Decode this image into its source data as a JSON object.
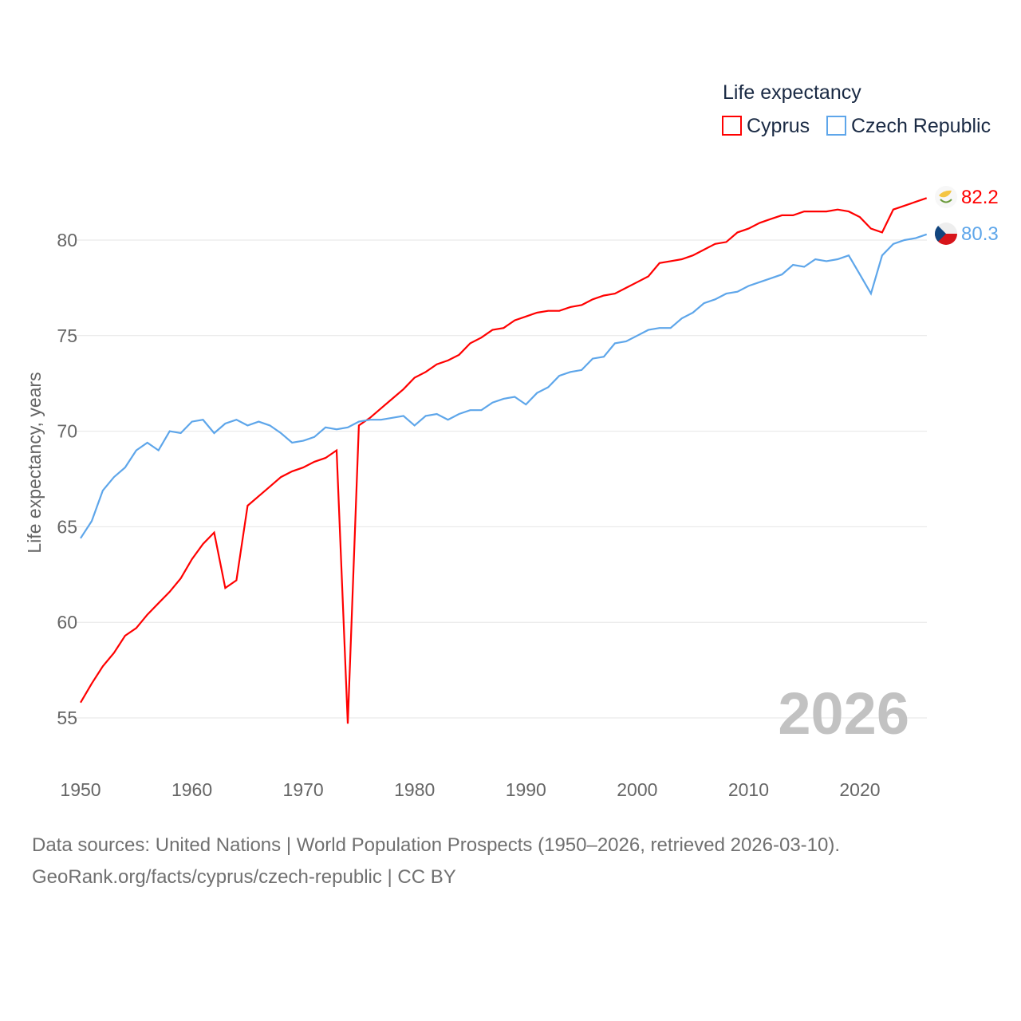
{
  "chart_data": {
    "type": "line",
    "title": "",
    "xlabel": "",
    "ylabel": "Life expectancy, years",
    "xlim": [
      1950,
      2026
    ],
    "ylim": [
      53,
      84
    ],
    "xticks": [
      1950,
      1960,
      1970,
      1980,
      1990,
      2000,
      2010,
      2020
    ],
    "yticks": [
      55,
      60,
      65,
      70,
      75,
      80
    ],
    "grid": true,
    "legend": {
      "title": "Life expectancy",
      "placement": "top-right"
    },
    "year_label": "2026",
    "x": [
      1950,
      1951,
      1952,
      1953,
      1954,
      1955,
      1956,
      1957,
      1958,
      1959,
      1960,
      1961,
      1962,
      1963,
      1964,
      1965,
      1966,
      1967,
      1968,
      1969,
      1970,
      1971,
      1972,
      1973,
      1974,
      1975,
      1976,
      1977,
      1978,
      1979,
      1980,
      1981,
      1982,
      1983,
      1984,
      1985,
      1986,
      1987,
      1988,
      1989,
      1990,
      1991,
      1992,
      1993,
      1994,
      1995,
      1996,
      1997,
      1998,
      1999,
      2000,
      2001,
      2002,
      2003,
      2004,
      2005,
      2006,
      2007,
      2008,
      2009,
      2010,
      2011,
      2012,
      2013,
      2014,
      2015,
      2016,
      2017,
      2018,
      2019,
      2020,
      2021,
      2022,
      2023,
      2024,
      2025,
      2026
    ],
    "series": [
      {
        "name": "Cyprus",
        "color": "#ff0000",
        "end_label": "82.2",
        "values": [
          55.8,
          56.8,
          57.7,
          58.4,
          59.3,
          59.7,
          60.4,
          61.0,
          61.6,
          62.3,
          63.3,
          64.1,
          64.7,
          61.8,
          62.2,
          66.1,
          66.6,
          67.1,
          67.6,
          67.9,
          68.1,
          68.4,
          68.6,
          69.0,
          54.7,
          70.3,
          70.7,
          71.2,
          71.7,
          72.2,
          72.8,
          73.1,
          73.5,
          73.7,
          74.0,
          74.6,
          74.9,
          75.3,
          75.4,
          75.8,
          76.0,
          76.2,
          76.3,
          76.3,
          76.5,
          76.6,
          76.9,
          77.1,
          77.2,
          77.5,
          77.8,
          78.1,
          78.8,
          78.9,
          79.0,
          79.2,
          79.5,
          79.8,
          79.9,
          80.4,
          80.6,
          80.9,
          81.1,
          81.3,
          81.3,
          81.5,
          81.5,
          81.5,
          81.6,
          81.5,
          81.2,
          80.6,
          80.4,
          81.6,
          81.8,
          82.0,
          82.2
        ]
      },
      {
        "name": "Czech Republic",
        "color": "#5ea6ea",
        "end_label": "80.3",
        "values": [
          64.4,
          65.3,
          66.9,
          67.6,
          68.1,
          69.0,
          69.4,
          69.0,
          70.0,
          69.9,
          70.5,
          70.6,
          69.9,
          70.4,
          70.6,
          70.3,
          70.5,
          70.3,
          69.9,
          69.4,
          69.5,
          69.7,
          70.2,
          70.1,
          70.2,
          70.5,
          70.6,
          70.6,
          70.7,
          70.8,
          70.3,
          70.8,
          70.9,
          70.6,
          70.9,
          71.1,
          71.1,
          71.5,
          71.7,
          71.8,
          71.4,
          72.0,
          72.3,
          72.9,
          73.1,
          73.2,
          73.8,
          73.9,
          74.6,
          74.7,
          75.0,
          75.3,
          75.4,
          75.4,
          75.9,
          76.2,
          76.7,
          76.9,
          77.2,
          77.3,
          77.6,
          77.8,
          78.0,
          78.2,
          78.7,
          78.6,
          79.0,
          78.9,
          79.0,
          79.2,
          78.2,
          77.2,
          79.2,
          79.8,
          80.0,
          80.1,
          80.3
        ]
      }
    ]
  },
  "footer": {
    "sources": "Data sources: United Nations | World Population Prospects (1950–2026, retrieved 2026-03-10).",
    "credit": "GeoRank.org/facts/cyprus/czech-republic | CC BY"
  }
}
